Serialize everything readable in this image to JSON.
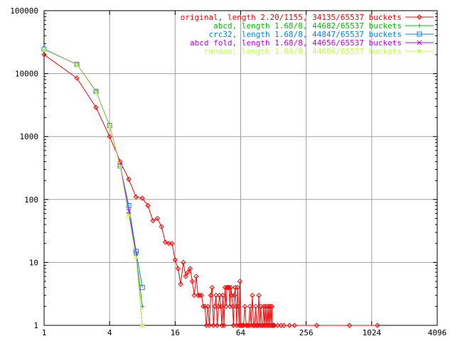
{
  "chart_data": {
    "type": "line",
    "title": "",
    "xlabel": "",
    "ylabel": "",
    "x_scale": "log2",
    "y_scale": "log10",
    "xlim": [
      1,
      4096
    ],
    "ylim": [
      1,
      100000
    ],
    "grid": true,
    "legend_position": "top-right",
    "x_ticks": [
      {
        "value": 1,
        "label": "1"
      },
      {
        "value": 4,
        "label": "4"
      },
      {
        "value": 16,
        "label": "16"
      },
      {
        "value": 64,
        "label": "64"
      },
      {
        "value": 256,
        "label": "256"
      },
      {
        "value": 1024,
        "label": "1024"
      },
      {
        "value": 4096,
        "label": "4096"
      }
    ],
    "y_ticks": [
      {
        "value": 1,
        "label": "1"
      },
      {
        "value": 10,
        "label": "10"
      },
      {
        "value": 100,
        "label": "100"
      },
      {
        "value": 1000,
        "label": "1000"
      },
      {
        "value": 10000,
        "label": "10000"
      },
      {
        "value": 100000,
        "label": "100000"
      }
    ],
    "series": [
      {
        "name": "original, length 2.20/1155, 34135/65537 buckets",
        "color": "#ff0000",
        "marker": "diamond",
        "points": [
          [
            1,
            20000
          ],
          [
            2,
            8500
          ],
          [
            3,
            2900
          ],
          [
            4,
            1000
          ],
          [
            5,
            400
          ],
          [
            6,
            210
          ],
          [
            7,
            110
          ],
          [
            8,
            105
          ],
          [
            9,
            80
          ],
          [
            10,
            46
          ],
          [
            11,
            50
          ],
          [
            12,
            37
          ],
          [
            13,
            21
          ],
          [
            14,
            20
          ],
          [
            15,
            20
          ],
          [
            16,
            11
          ],
          [
            17,
            8
          ],
          [
            18,
            4.5
          ],
          [
            19,
            10
          ],
          [
            20,
            6
          ],
          [
            21,
            7
          ],
          [
            22,
            8
          ],
          [
            23,
            5
          ],
          [
            24,
            3
          ],
          [
            25,
            6
          ],
          [
            26,
            3
          ],
          [
            27,
            3
          ],
          [
            28,
            3
          ],
          [
            29,
            2
          ],
          [
            30,
            2
          ],
          [
            31,
            1
          ],
          [
            32,
            2
          ],
          [
            33,
            1
          ],
          [
            34,
            3
          ],
          [
            35,
            4
          ],
          [
            36,
            1
          ],
          [
            37,
            2
          ],
          [
            38,
            3
          ],
          [
            39,
            1
          ],
          [
            40,
            2
          ],
          [
            41,
            3
          ],
          [
            42,
            2
          ],
          [
            43,
            1
          ],
          [
            44,
            3
          ],
          [
            45,
            1
          ],
          [
            46,
            4
          ],
          [
            47,
            2
          ],
          [
            48,
            4
          ],
          [
            49,
            4
          ],
          [
            50,
            4
          ],
          [
            51,
            2
          ],
          [
            52,
            4
          ],
          [
            53,
            3
          ],
          [
            54,
            2
          ],
          [
            55,
            1
          ],
          [
            56,
            3
          ],
          [
            57,
            4
          ],
          [
            58,
            2
          ],
          [
            59,
            1
          ],
          [
            60,
            4
          ],
          [
            61,
            2
          ],
          [
            62,
            1
          ],
          [
            63,
            5
          ],
          [
            64,
            1
          ],
          [
            66,
            1
          ],
          [
            68,
            1
          ],
          [
            70,
            2
          ],
          [
            72,
            1
          ],
          [
            74,
            1
          ],
          [
            76,
            1
          ],
          [
            78,
            2
          ],
          [
            80,
            1
          ],
          [
            82,
            3
          ],
          [
            84,
            1
          ],
          [
            86,
            1
          ],
          [
            88,
            2
          ],
          [
            90,
            1
          ],
          [
            92,
            1
          ],
          [
            94,
            3
          ],
          [
            96,
            1
          ],
          [
            98,
            2
          ],
          [
            100,
            1
          ],
          [
            102,
            1
          ],
          [
            104,
            2
          ],
          [
            106,
            1
          ],
          [
            108,
            2
          ],
          [
            110,
            1
          ],
          [
            112,
            2
          ],
          [
            114,
            1
          ],
          [
            116,
            2
          ],
          [
            118,
            1
          ],
          [
            120,
            2
          ],
          [
            122,
            1
          ],
          [
            124,
            2
          ],
          [
            126,
            1
          ],
          [
            128,
            1
          ],
          [
            130,
            1
          ],
          [
            140,
            1
          ],
          [
            150,
            1
          ],
          [
            160,
            1
          ],
          [
            180,
            1
          ],
          [
            200,
            1
          ],
          [
            320,
            1
          ],
          [
            640,
            1
          ],
          [
            1155,
            1
          ]
        ]
      },
      {
        "name": "abcd, length 1.68/8, 44682/65537 buckets",
        "color": "#00c000",
        "marker": "plus",
        "points": [
          [
            1,
            24000
          ],
          [
            2,
            14000
          ],
          [
            3,
            5200
          ],
          [
            4,
            1450
          ],
          [
            5,
            340
          ],
          [
            6,
            60
          ],
          [
            7,
            13
          ],
          [
            8,
            2
          ]
        ]
      },
      {
        "name": "crc32, length 1.68/8, 44847/65537 buckets",
        "color": "#0080ff",
        "marker": "square",
        "points": [
          [
            1,
            24500
          ],
          [
            2,
            14000
          ],
          [
            3,
            5200
          ],
          [
            4,
            1500
          ],
          [
            5,
            340
          ],
          [
            6,
            80
          ],
          [
            7,
            15
          ],
          [
            8,
            4
          ]
        ]
      },
      {
        "name": "abcd fold, length 1.68/8, 44656/65537 buckets",
        "color": "#c000ff",
        "marker": "x",
        "points": [
          [
            1,
            24000
          ],
          [
            2,
            14000
          ],
          [
            3,
            5200
          ],
          [
            4,
            1450
          ],
          [
            5,
            350
          ],
          [
            6,
            65
          ],
          [
            7,
            14
          ],
          [
            8,
            1
          ]
        ]
      },
      {
        "name": "random, length 1.69/8, 44686/65537 buckets",
        "color": "#c0ff40",
        "marker": "star",
        "points": [
          [
            1,
            24000
          ],
          [
            2,
            13800
          ],
          [
            3,
            5100
          ],
          [
            4,
            1450
          ],
          [
            5,
            330
          ],
          [
            6,
            55
          ],
          [
            7,
            12
          ],
          [
            8,
            1
          ]
        ]
      }
    ]
  }
}
